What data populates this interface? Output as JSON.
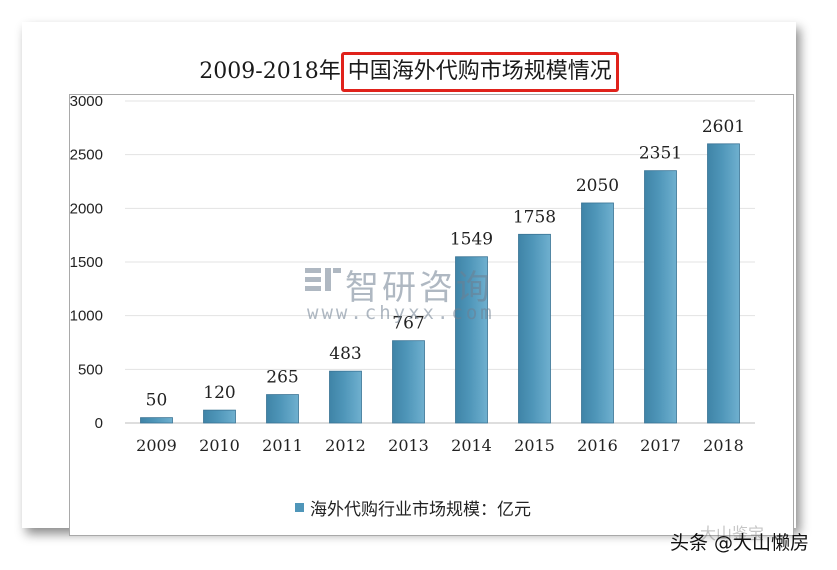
{
  "chart": {
    "title_prefix": "2009-2018年",
    "title_highlight": "中国海外代购市场规模情况"
  },
  "legend": {
    "label": "海外代购行业市场规模：亿元"
  },
  "watermark": {
    "brand": "智研咨询",
    "url": "www.chyxx.com"
  },
  "credit": {
    "text": "头条 @大山懒房",
    "ghost": "大山鉴宝"
  },
  "colors": {
    "bar": "#4f96b9",
    "highlight_box": "#e0221b"
  },
  "chart_data": {
    "type": "bar",
    "categories": [
      "2009",
      "2010",
      "2011",
      "2012",
      "2013",
      "2014",
      "2015",
      "2016",
      "2017",
      "2018"
    ],
    "series": [
      {
        "name": "海外代购行业市场规模：亿元",
        "values": [
          50,
          120,
          265,
          483,
          767,
          1549,
          1758,
          2050,
          2351,
          2601
        ],
        "labels": [
          "50",
          "120",
          "265",
          "483",
          "767",
          "1549",
          "1758",
          "2050",
          "2351",
          "2601"
        ]
      }
    ],
    "title": "2009-2018年中国海外代购市场规模情况",
    "ylim": [
      0,
      3000
    ],
    "yticks": [
      0,
      500,
      1000,
      1500,
      2000,
      2500,
      3000
    ],
    "ytick_labels": [
      "0",
      "500",
      "1000",
      "1500",
      "2000",
      "2500",
      "3000"
    ],
    "grid": true,
    "legend_position": "bottom"
  }
}
